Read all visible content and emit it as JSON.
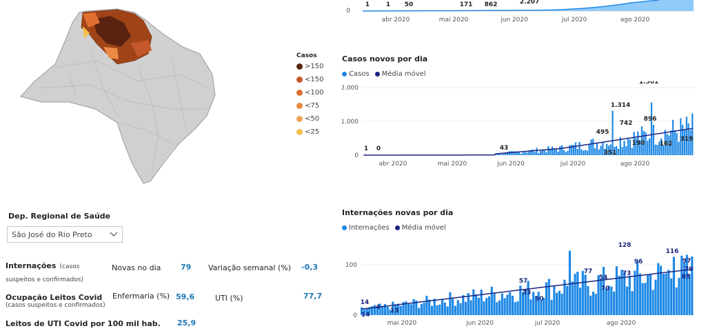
{
  "map": {
    "legend_title": "Casos",
    "legend": [
      {
        "label": ">150",
        "color": "#5a2310"
      },
      {
        "label": "<150",
        "color": "#c4582a"
      },
      {
        "label": "<100",
        "color": "#e07031"
      },
      {
        "label": "<75",
        "color": "#ea8a45"
      },
      {
        "label": "<50",
        "color": "#efa358"
      },
      {
        "label": "<25",
        "color": "#f3c04c"
      }
    ]
  },
  "region_filter": {
    "label": "Dep. Regional de Saúde",
    "selected": "São José do Rio Preto"
  },
  "stats": {
    "internacoes_title": "Internações",
    "internacoes_sub1": "(casos",
    "internacoes_sub2": "suspeitos e confirmados)",
    "novas_label": "Novas no dia",
    "novas_value": "79",
    "variacao_label": "Variação semanal (%)",
    "variacao_value": "-0,3",
    "ocupacao_title": "Ocupação Leitos Covid",
    "ocupacao_sub": "(casos suspeitos e confirmados)",
    "enfermaria_label": "Enfermaria (%)",
    "enfermaria_value": "59,6",
    "uti_label": "UTI (%)",
    "uti_value": "77,7",
    "leitos_title": "Leitos de UTI Covid por 100 mil hab.",
    "leitos_value": "25,9"
  },
  "chart_data": [
    {
      "type": "area",
      "title": "",
      "x_ticks": [
        "abr 2020",
        "mai 2020",
        "jun 2020",
        "jul 2020",
        "ago 2020"
      ],
      "y_ticks": [
        "0"
      ],
      "annotations": [
        "1",
        "1",
        "50",
        "171",
        "862",
        "2.207"
      ]
    },
    {
      "type": "bar",
      "title": "Casos novos por dia",
      "legend": [
        {
          "name": "Casos",
          "color": "#1e88e5"
        },
        {
          "name": "Média móvel",
          "color": "#1a237e"
        }
      ],
      "x_ticks": [
        "abr 2020",
        "mai 2020",
        "jun 2020",
        "jul 2020",
        "ago 2020"
      ],
      "y_ticks": [
        "0",
        "1.000",
        "2.000"
      ],
      "ylim": [
        0,
        2000
      ],
      "annotations": [
        "1",
        "0",
        "43",
        "495",
        "1.314",
        "742",
        "896",
        "1.561",
        "351",
        "190",
        "162",
        "319"
      ]
    },
    {
      "type": "bar",
      "title": "Internações novas por dia",
      "legend": [
        {
          "name": "Internações",
          "color": "#1e88e5"
        },
        {
          "name": "Média móvel",
          "color": "#1a237e"
        }
      ],
      "x_ticks": [
        "mai 2020",
        "jun 2020",
        "jul 2020",
        "ago 2020"
      ],
      "y_ticks": [
        "0",
        "100"
      ],
      "ylim": [
        0,
        140
      ],
      "annotations": [
        "14",
        "4",
        "14",
        "13",
        "57",
        "33",
        "50",
        "77",
        "54",
        "70",
        "128",
        "73",
        "96",
        "116",
        "97",
        "79",
        "85"
      ]
    }
  ]
}
